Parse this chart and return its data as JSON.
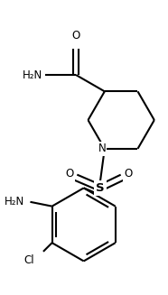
{
  "background_color": "#ffffff",
  "line_color": "#000000",
  "line_width": 1.5,
  "text_color": "#000000",
  "figsize": [
    1.86,
    3.27
  ],
  "dpi": 100,
  "xlim": [
    0,
    186
  ],
  "ylim": [
    0,
    327
  ]
}
